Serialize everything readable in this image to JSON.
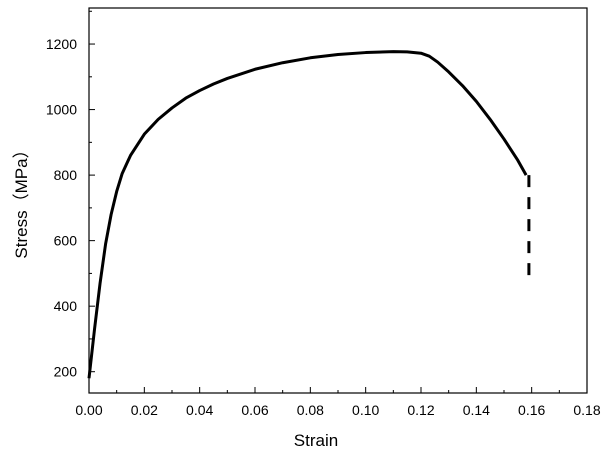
{
  "chart_data": {
    "type": "line",
    "xlabel": "Strain",
    "ylabel": "Stress（MPa）",
    "xlim": [
      0.0,
      0.18
    ],
    "ylim": [
      135,
      1310
    ],
    "x_ticks": [
      "0.00",
      "0.02",
      "0.04",
      "0.06",
      "0.08",
      "0.10",
      "0.12",
      "0.14",
      "0.16",
      "0.18"
    ],
    "y_ticks": [
      "200",
      "400",
      "600",
      "800",
      "1000",
      "1200"
    ],
    "x_tick_values": [
      0.0,
      0.02,
      0.04,
      0.06,
      0.08,
      0.1,
      0.12,
      0.14,
      0.16,
      0.18
    ],
    "y_tick_values": [
      200,
      400,
      600,
      800,
      1000,
      1200
    ],
    "grid": false,
    "legend": "none",
    "series": [
      {
        "x": [
          0.0,
          0.002,
          0.004,
          0.006,
          0.008,
          0.01,
          0.012,
          0.015,
          0.02,
          0.025,
          0.03,
          0.035,
          0.04,
          0.045,
          0.05,
          0.06,
          0.07,
          0.08,
          0.09,
          0.1,
          0.11,
          0.115,
          0.12,
          0.123,
          0.126,
          0.13,
          0.135,
          0.14,
          0.145,
          0.15,
          0.155,
          0.158
        ],
        "y": [
          180,
          330,
          470,
          590,
          680,
          750,
          805,
          860,
          925,
          970,
          1005,
          1035,
          1058,
          1078,
          1095,
          1123,
          1143,
          1158,
          1168,
          1174,
          1177,
          1176,
          1172,
          1163,
          1145,
          1115,
          1073,
          1025,
          970,
          910,
          845,
          800
        ],
        "color": "#000000"
      },
      {
        "style": "dashed",
        "x": [
          0.159,
          0.159
        ],
        "y": [
          800,
          475
        ],
        "color": "#000000"
      }
    ]
  }
}
